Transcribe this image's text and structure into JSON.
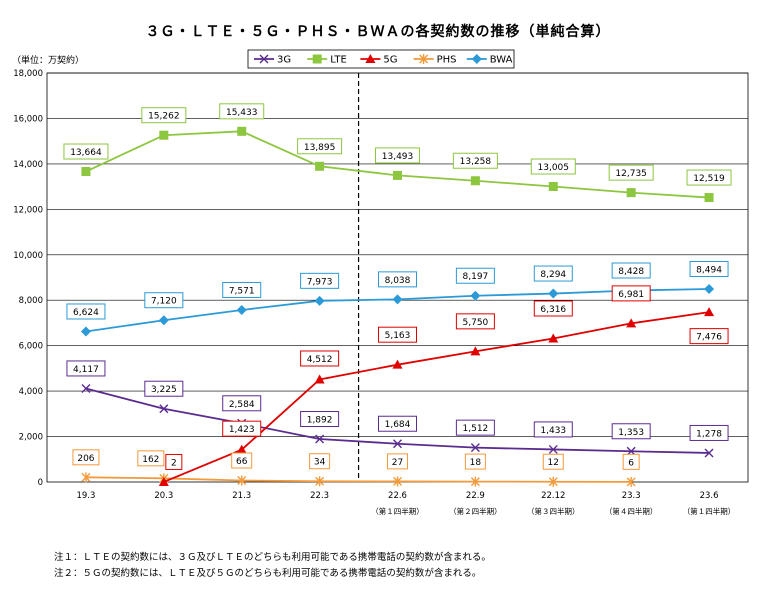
{
  "title": "３Ｇ・ＬＴＥ・５Ｇ・ＰＨＳ・ＢＷＡの各契約数の推移（単純合算）",
  "unit_label": "（単位：万契約）",
  "notes": [
    "注１：ＬＴＥの契約数には、３Ｇ及びＬＴＥのどちらも利用可能である携帯電話の契約数が含まれる。",
    "注２：５Ｇの契約数には、ＬＴＥ及び５Ｇのどちらも利用可能である携帯電話の契約数が含まれる。"
  ],
  "colors": {
    "3G": "#5b2c8f",
    "LTE": "#8dc63f",
    "5G": "#e00000",
    "PHS": "#f39a3b",
    "BWA": "#2c9ad6"
  },
  "chart_data": {
    "type": "line",
    "categories": [
      "19.3",
      "20.3",
      "21.3",
      "22.3",
      "22.6",
      "22.9",
      "22.12",
      "23.3",
      "23.6"
    ],
    "quarter_labels": [
      "",
      "",
      "",
      "",
      "（第１四半期）",
      "（第２四半期）",
      "（第３四半期）",
      "（第４四半期）",
      "（第１四半期）"
    ],
    "ylim": [
      0,
      18000
    ],
    "yticks": [
      0,
      2000,
      4000,
      6000,
      8000,
      10000,
      12000,
      14000,
      16000,
      18000
    ],
    "ytick_labels": [
      "0",
      "2,000",
      "4,000",
      "6,000",
      "8,000",
      "10,000",
      "12,000",
      "14,000",
      "16,000",
      "18,000"
    ],
    "grid": true,
    "legend_position": "top",
    "divider_after_category": "22.3",
    "series": [
      {
        "name": "3G",
        "marker": "x",
        "values": [
          4117,
          3225,
          2584,
          1892,
          1684,
          1512,
          1433,
          1353,
          1278
        ],
        "labels": [
          "4,117",
          "3,225",
          "2,584",
          "1,892",
          "1,684",
          "1,512",
          "1,433",
          "1,353",
          "1,278"
        ]
      },
      {
        "name": "LTE",
        "marker": "square",
        "values": [
          13664,
          15262,
          15433,
          13895,
          13493,
          13258,
          13005,
          12735,
          12519
        ],
        "labels": [
          "13,664",
          "15,262",
          "15,433",
          "13,895",
          "13,493",
          "13,258",
          "13,005",
          "12,735",
          "12,519"
        ]
      },
      {
        "name": "5G",
        "marker": "triangle",
        "values": [
          null,
          2,
          1423,
          4512,
          5163,
          5750,
          6316,
          6981,
          7476
        ],
        "labels": [
          null,
          "2",
          "1,423",
          "4,512",
          "5,163",
          "5,750",
          "6,316",
          "6,981",
          "7,476"
        ]
      },
      {
        "name": "PHS",
        "marker": "star",
        "values": [
          206,
          162,
          66,
          34,
          27,
          18,
          12,
          6,
          null
        ],
        "labels": [
          "206",
          "162",
          "66",
          "34",
          "27",
          "18",
          "12",
          "6",
          null
        ]
      },
      {
        "name": "BWA",
        "marker": "diamond",
        "values": [
          6624,
          7120,
          7571,
          7973,
          8038,
          8197,
          8294,
          8428,
          8494
        ],
        "labels": [
          "6,624",
          "7,120",
          "7,571",
          "7,973",
          "8,038",
          "8,197",
          "8,294",
          "8,428",
          "8,494"
        ]
      }
    ]
  }
}
